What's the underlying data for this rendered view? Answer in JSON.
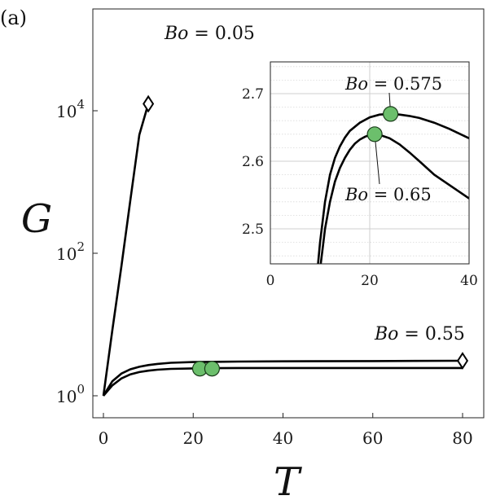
{
  "panel_label": "(a)",
  "colors": {
    "curve": "#000000",
    "marker": "#6cbf6c",
    "marker_edge": "#1a3d1a",
    "grid": "#d9d9d9"
  },
  "chart_data": [
    {
      "type": "line",
      "id": "main",
      "xlabel": "T",
      "ylabel": "G",
      "xscale": "linear",
      "yscale": "log",
      "xlim": [
        0,
        82
      ],
      "ylim_log10": [
        -0.4,
        5.2
      ],
      "xticks": [
        0,
        20,
        40,
        60,
        80
      ],
      "xtick_labels": [
        "0",
        "20",
        "40",
        "60",
        "80"
      ],
      "yticks_log10": [
        0,
        2,
        4
      ],
      "ytick_labels": [
        {
          "base": "10",
          "exp": "0"
        },
        {
          "base": "10",
          "exp": "2"
        },
        {
          "base": "10",
          "exp": "4"
        }
      ],
      "grid": false,
      "series": [
        {
          "name": "Bo = 0.05",
          "x": [
            0,
            2,
            4,
            6,
            8,
            10
          ],
          "y": [
            1,
            8.4,
            66,
            560,
            4600,
            12500
          ],
          "end_marker": "diamond"
        },
        {
          "name": "Bo = 0.55",
          "x": [
            0,
            2,
            4,
            6,
            8,
            10,
            12,
            15,
            20,
            25,
            30,
            40,
            60,
            80
          ],
          "y": [
            1,
            1.6,
            2.05,
            2.35,
            2.55,
            2.7,
            2.8,
            2.9,
            2.97,
            3.0,
            3.02,
            3.04,
            3.07,
            3.1
          ],
          "end_marker": "diamond"
        },
        {
          "name": "",
          "x": [
            0,
            2,
            4,
            6,
            8,
            10,
            12,
            15,
            20,
            25,
            30,
            40,
            60,
            80
          ],
          "y": [
            1,
            1.4,
            1.75,
            2.0,
            2.15,
            2.25,
            2.32,
            2.38,
            2.42,
            2.44,
            2.45,
            2.45,
            2.45,
            2.45
          ]
        }
      ],
      "points": [
        {
          "x": 21.5,
          "y": 2.4
        },
        {
          "x": 24.2,
          "y": 2.4
        }
      ],
      "annotations": [
        {
          "text": "Bo = 0.05",
          "italic_part": "Bo",
          "rest": " = 0.05"
        },
        {
          "text": "Bo = 0.55",
          "italic_part": "Bo",
          "rest": " = 0.55"
        }
      ]
    },
    {
      "type": "line",
      "id": "inset",
      "xlim": [
        0,
        40
      ],
      "ylim": [
        2.44,
        2.74
      ],
      "xticks": [
        0,
        20,
        40
      ],
      "xtick_labels": [
        "0",
        "20",
        "40"
      ],
      "yticks": [
        2.5,
        2.6,
        2.7
      ],
      "ytick_labels": [
        "2.5",
        "2.6",
        "2.7"
      ],
      "grid": true,
      "series": [
        {
          "name": "Bo = 0.575",
          "x": [
            9.5,
            10,
            11,
            12,
            13,
            14,
            15,
            16,
            18,
            20,
            22,
            24,
            26,
            28,
            30,
            33,
            36,
            40
          ],
          "y": [
            2.44,
            2.48,
            2.54,
            2.58,
            2.605,
            2.622,
            2.635,
            2.645,
            2.657,
            2.665,
            2.669,
            2.67,
            2.669,
            2.667,
            2.664,
            2.657,
            2.648,
            2.634
          ]
        },
        {
          "name": "Bo = 0.65",
          "x": [
            10,
            10.5,
            11,
            12,
            13,
            14,
            15,
            16,
            17,
            18,
            19,
            20,
            21,
            22,
            24,
            26,
            28,
            30,
            33,
            36,
            40
          ],
          "y": [
            2.44,
            2.47,
            2.5,
            2.54,
            2.57,
            2.59,
            2.605,
            2.617,
            2.626,
            2.632,
            2.636,
            2.639,
            2.64,
            2.639,
            2.634,
            2.625,
            2.613,
            2.6,
            2.58,
            2.565,
            2.545
          ]
        }
      ],
      "points": [
        {
          "x": 24.2,
          "y": 2.67
        },
        {
          "x": 21.0,
          "y": 2.64
        }
      ],
      "annotations": [
        {
          "text": "Bo = 0.575",
          "italic_part": "Bo",
          "rest": " = 0.575"
        },
        {
          "text": "Bo = 0.65",
          "italic_part": "Bo",
          "rest": " = 0.65"
        }
      ]
    }
  ]
}
